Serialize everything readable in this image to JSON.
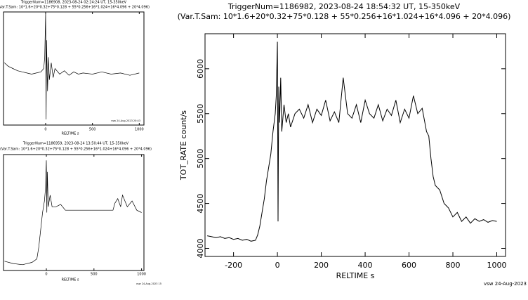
{
  "chart_data": [
    {
      "type": "line",
      "title": "TriggerNum=1186908, 2023-08-24 02:24:24 UT, 15-350keV",
      "subtitle": "(Var.T.Sam: 10*1.6+20*0.32+75*0.128  +  55*0.256+16*1.024+16*4.096  +  20*4.096)",
      "x_label": "RELTIME   s",
      "footer": "vsw 24-Aug-2023 20:43",
      "xlim": [
        -450,
        1050
      ],
      "xticks": [
        0,
        500,
        1000
      ],
      "ylim": [
        0,
        100
      ],
      "color": "#000000",
      "x": [
        -440,
        -400,
        -350,
        -300,
        -250,
        -200,
        -150,
        -100,
        -50,
        -20,
        -10,
        0,
        5,
        10,
        20,
        30,
        40,
        60,
        80,
        100,
        150,
        200,
        250,
        300,
        350,
        400,
        500,
        600,
        700,
        800,
        900,
        1000
      ],
      "values": [
        55,
        52,
        50,
        48,
        47,
        46,
        45,
        46,
        47,
        50,
        60,
        100,
        5,
        75,
        30,
        60,
        40,
        55,
        42,
        50,
        45,
        48,
        44,
        47,
        45,
        46,
        45,
        47,
        45,
        46,
        44,
        46
      ]
    },
    {
      "type": "line",
      "title": "TriggerNum=1186959, 2023-08-24 13:50:44 UT, 15-350keV",
      "subtitle": "(Var.T.Sam: 10*1.6+20*0.32+75*0.128  +  55*0.256+16*1.024+16*4.096  +  20*4.096)",
      "x_label": "RELTIME   s",
      "footer": "vsw 24-Aug-2023 15",
      "xlim": [
        -450,
        1025
      ],
      "xticks": [
        0,
        500,
        1000
      ],
      "ylim": [
        0,
        100
      ],
      "color": "#000000",
      "x": [
        -440,
        -350,
        -250,
        -150,
        -100,
        -80,
        -60,
        -40,
        -20,
        -10,
        0,
        5,
        10,
        20,
        40,
        60,
        100,
        150,
        200,
        400,
        600,
        700,
        720,
        750,
        780,
        800,
        850,
        900,
        950,
        1000
      ],
      "values": [
        8,
        6,
        5,
        7,
        10,
        20,
        35,
        50,
        60,
        70,
        95,
        50,
        85,
        55,
        65,
        55,
        55,
        57,
        52,
        52,
        52,
        52,
        58,
        62,
        55,
        65,
        55,
        60,
        52,
        50
      ]
    },
    {
      "type": "line",
      "title": "TriggerNum=1186982, 2023-08-24 18:54:32 UT, 15-350keV",
      "subtitle": "(Var.T.Sam: 10*1.6+20*0.32+75*0.128  +  55*0.256+16*1.024+16*4.096  +  20*4.096)",
      "x_label": "RELTIME   s",
      "y_label": "TOT_RATE   count/s",
      "footer": "vsw 24-Aug-2023",
      "xlim": [
        -330,
        1040
      ],
      "xticks": [
        -200,
        0,
        200,
        400,
        600,
        800,
        1000
      ],
      "ylim": [
        3910,
        6390
      ],
      "yticks": [
        4000,
        4500,
        5000,
        5500,
        6000
      ],
      "color": "#000000",
      "x": [
        -320,
        -300,
        -280,
        -260,
        -240,
        -220,
        -200,
        -180,
        -160,
        -140,
        -120,
        -100,
        -90,
        -80,
        -70,
        -60,
        -50,
        -40,
        -30,
        -20,
        -10,
        -5,
        0,
        3,
        6,
        10,
        15,
        20,
        30,
        40,
        50,
        60,
        80,
        100,
        120,
        140,
        160,
        180,
        200,
        220,
        240,
        260,
        280,
        300,
        320,
        340,
        360,
        380,
        400,
        420,
        440,
        460,
        480,
        500,
        520,
        540,
        560,
        580,
        600,
        620,
        640,
        660,
        680,
        690,
        700,
        710,
        720,
        740,
        760,
        780,
        800,
        820,
        840,
        860,
        880,
        900,
        920,
        940,
        960,
        980,
        1000
      ],
      "values": [
        4140,
        4130,
        4120,
        4130,
        4110,
        4120,
        4100,
        4110,
        4090,
        4100,
        4080,
        4090,
        4150,
        4250,
        4400,
        4550,
        4750,
        4900,
        5050,
        5300,
        5500,
        5700,
        6300,
        4300,
        5800,
        5400,
        5900,
        5300,
        5600,
        5400,
        5500,
        5350,
        5500,
        5550,
        5450,
        5600,
        5400,
        5550,
        5480,
        5650,
        5420,
        5520,
        5400,
        5900,
        5500,
        5450,
        5600,
        5400,
        5650,
        5500,
        5450,
        5600,
        5420,
        5550,
        5480,
        5650,
        5400,
        5550,
        5450,
        5700,
        5500,
        5560,
        5300,
        5250,
        5000,
        4800,
        4700,
        4650,
        4500,
        4450,
        4350,
        4400,
        4300,
        4350,
        4280,
        4330,
        4300,
        4320,
        4290,
        4310,
        4300
      ]
    }
  ]
}
